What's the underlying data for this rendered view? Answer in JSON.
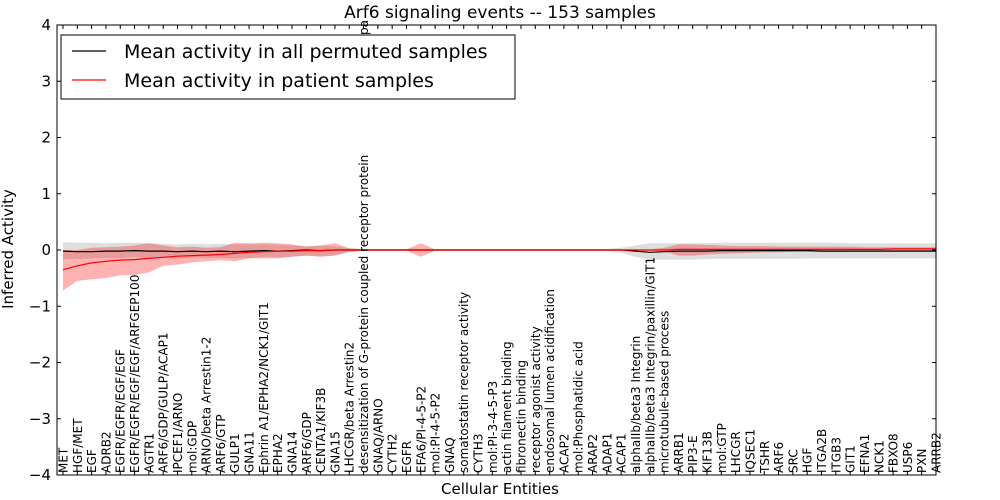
{
  "chart_data": {
    "type": "line",
    "title": "Arf6 signaling events -- 153 samples",
    "xlabel": "Cellular Entities",
    "ylabel": "Inferred Activity",
    "ylim": [
      -4,
      4
    ],
    "yticks": [
      -4,
      -3,
      -2,
      -1,
      0,
      1,
      2,
      3,
      4
    ],
    "ytick_labels": [
      "−4",
      "−3",
      "−2",
      "−1",
      "0",
      "1",
      "2",
      "3",
      "4"
    ],
    "legend_position": "top-left",
    "categories": [
      "MET",
      "HGF/MET",
      "EGF",
      "ADRB2",
      "EGFR/EGFR/EGF/EGF",
      "EGFR/EGFR/EGF/EGF/ARFGEP100",
      "AGTR1",
      "ARF6/GDP/GULP/ACAP1",
      "IPCEF1/ARNO",
      "mol:GDP",
      "ARNO/beta Arrestin1-2",
      "ARF6/GTP",
      "GULP1",
      "GNA11",
      "Ephrin A1/EPHA2/NCK1/GIT1",
      "EPHA2",
      "GNA14",
      "ARF6/GDP",
      "CENTA1/KIF3B",
      "GNA15",
      "LHCGR/beta Arrestin2",
      "desensitization of G-protein coupled receptor protein",
      "GNAQ/ARNO",
      "CYTH2",
      "EGFR",
      "EFA6/PI-4-5-P2",
      "mol:PI-4-5-P2",
      "GNAQ",
      "somatostatin receptor activity",
      "CYTH3",
      "mol:PI-3-4-5-P3",
      "actin filament binding",
      "fibronectin binding",
      "receptor agonist activity",
      "endosomal lumen acidification",
      "ACAP2",
      "mol:Phosphatidic acid",
      "ARAP2",
      "ADAP1",
      "ACAP1",
      "alphaIIb/beta3 Integrin",
      "alphaIIb/beta3 Integrin/paxillin/GIT1",
      "microtubule-based process",
      "ARRB1",
      "PIP3-E",
      "KIF13B",
      "mol:GTP",
      "LHCGR",
      "IQSEC1",
      "TSHR",
      "ARF6",
      "SRC",
      "HGF",
      "ITGA2B",
      "ITGB3",
      "GIT1",
      "EFNA1",
      "NCK1",
      "FBXO8",
      "USP6",
      "PXN",
      "ARRB2"
    ],
    "extra_label": "pa",
    "series": [
      {
        "name": "Mean activity in all permuted samples",
        "color": "#000000",
        "values": [
          -0.02,
          -0.03,
          -0.03,
          -0.02,
          -0.02,
          -0.01,
          -0.02,
          -0.02,
          -0.03,
          -0.02,
          -0.03,
          -0.02,
          -0.03,
          -0.02,
          -0.01,
          -0.02,
          -0.01,
          0.0,
          -0.01,
          0.0,
          0.0,
          0.0,
          0.0,
          0.0,
          0.0,
          0.0,
          0.0,
          0.0,
          0.0,
          0.0,
          0.0,
          0.0,
          0.0,
          0.0,
          0.0,
          0.0,
          0.0,
          0.0,
          0.0,
          0.0,
          -0.02,
          -0.04,
          -0.03,
          -0.02,
          -0.02,
          -0.02,
          -0.01,
          -0.01,
          -0.01,
          -0.01,
          -0.01,
          -0.01,
          -0.01,
          -0.02,
          -0.02,
          -0.02,
          -0.02,
          -0.02,
          -0.02,
          -0.02,
          -0.02,
          -0.02
        ],
        "band_upper": [
          0.14,
          0.13,
          0.13,
          0.12,
          0.13,
          0.13,
          0.12,
          0.11,
          0.1,
          0.11,
          0.1,
          0.11,
          0.1,
          0.1,
          0.1,
          0.09,
          0.08,
          0.07,
          0.08,
          0.07,
          0.03,
          0.02,
          0.02,
          0.02,
          0.02,
          0.02,
          0.02,
          0.02,
          0.02,
          0.02,
          0.02,
          0.02,
          0.02,
          0.02,
          0.02,
          0.02,
          0.02,
          0.02,
          0.02,
          0.04,
          0.08,
          0.12,
          0.12,
          0.12,
          0.12,
          0.12,
          0.13,
          0.13,
          0.13,
          0.13,
          0.13,
          0.13,
          0.13,
          0.13,
          0.13,
          0.12,
          0.12,
          0.12,
          0.12,
          0.12,
          0.12,
          0.12
        ],
        "band_lower": [
          -0.16,
          -0.16,
          -0.15,
          -0.14,
          -0.14,
          -0.13,
          -0.14,
          -0.14,
          -0.15,
          -0.14,
          -0.14,
          -0.14,
          -0.15,
          -0.14,
          -0.12,
          -0.13,
          -0.12,
          -0.1,
          -0.11,
          -0.09,
          -0.04,
          -0.02,
          -0.02,
          -0.02,
          -0.02,
          -0.02,
          -0.02,
          -0.02,
          -0.02,
          -0.02,
          -0.02,
          -0.02,
          -0.02,
          -0.02,
          -0.02,
          -0.02,
          -0.02,
          -0.02,
          -0.02,
          -0.05,
          -0.12,
          -0.17,
          -0.17,
          -0.17,
          -0.17,
          -0.16,
          -0.16,
          -0.16,
          -0.16,
          -0.16,
          -0.16,
          -0.16,
          -0.15,
          -0.15,
          -0.15,
          -0.15,
          -0.15,
          -0.15,
          -0.15,
          -0.15,
          -0.15,
          -0.15
        ]
      },
      {
        "name": "Mean activity in patient samples",
        "color": "#ff0000",
        "values": [
          -0.35,
          -0.28,
          -0.23,
          -0.2,
          -0.18,
          -0.17,
          -0.15,
          -0.13,
          -0.11,
          -0.1,
          -0.09,
          -0.08,
          -0.06,
          -0.04,
          -0.03,
          -0.02,
          -0.02,
          -0.01,
          -0.01,
          0.0,
          0.0,
          0.0,
          0.0,
          0.0,
          0.0,
          0.0,
          0.0,
          0.0,
          0.0,
          0.0,
          0.0,
          0.0,
          0.0,
          0.0,
          0.0,
          0.0,
          0.0,
          0.0,
          0.0,
          0.0,
          0.0,
          0.0,
          0.0,
          0.01,
          0.01,
          0.01,
          0.01,
          0.01,
          0.01,
          0.01,
          0.01,
          0.01,
          0.01,
          0.01,
          0.01,
          0.01,
          0.01,
          0.01,
          0.02,
          0.02,
          0.02,
          0.02
        ],
        "band_upper": [
          0.0,
          0.0,
          0.04,
          0.05,
          0.06,
          0.08,
          0.12,
          0.08,
          0.05,
          0.06,
          0.04,
          0.05,
          0.13,
          0.12,
          0.13,
          0.12,
          0.1,
          0.06,
          0.08,
          0.12,
          0.03,
          0.01,
          0.01,
          0.01,
          0.01,
          0.12,
          0.01,
          0.01,
          0.01,
          0.01,
          0.01,
          0.01,
          0.01,
          0.01,
          0.01,
          0.01,
          0.01,
          0.01,
          0.01,
          0.01,
          0.01,
          0.01,
          0.04,
          0.1,
          0.1,
          0.09,
          0.08,
          0.07,
          0.07,
          0.07,
          0.06,
          0.06,
          0.06,
          0.06,
          0.06,
          0.06,
          0.05,
          0.05,
          0.05,
          0.05,
          0.05,
          0.05
        ],
        "band_lower": [
          -0.72,
          -0.55,
          -0.52,
          -0.5,
          -0.45,
          -0.44,
          -0.4,
          -0.28,
          -0.26,
          -0.22,
          -0.2,
          -0.18,
          -0.2,
          -0.15,
          -0.15,
          -0.15,
          -0.12,
          -0.1,
          -0.12,
          -0.1,
          -0.03,
          -0.01,
          -0.01,
          -0.01,
          -0.01,
          -0.12,
          -0.01,
          -0.01,
          -0.01,
          -0.01,
          -0.01,
          -0.01,
          -0.01,
          -0.01,
          -0.01,
          -0.01,
          -0.01,
          -0.01,
          -0.01,
          -0.01,
          -0.01,
          -0.01,
          -0.02,
          -0.1,
          -0.1,
          -0.08,
          -0.07,
          -0.06,
          -0.05,
          -0.04,
          -0.04,
          -0.03,
          -0.03,
          -0.03,
          -0.03,
          -0.03,
          -0.02,
          -0.02,
          -0.02,
          -0.02,
          -0.02,
          -0.02
        ]
      }
    ]
  }
}
